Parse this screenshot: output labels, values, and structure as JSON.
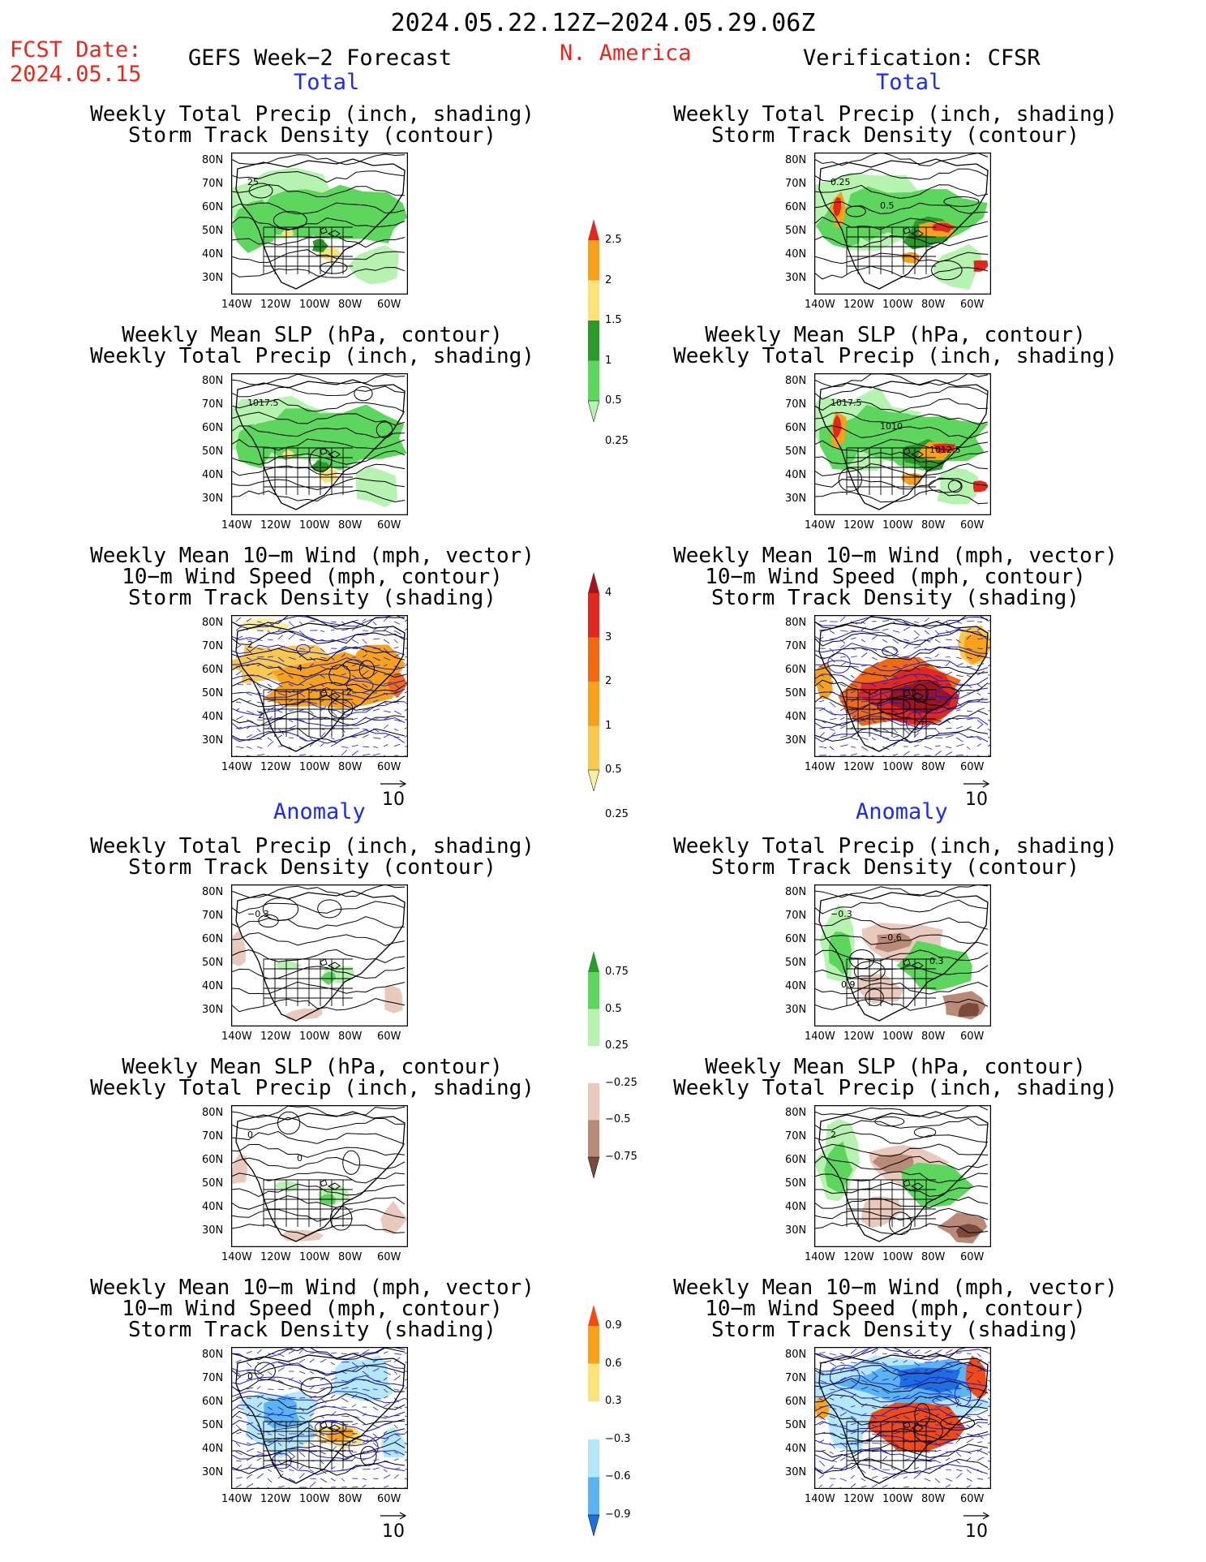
{
  "header": {
    "title": "2024.05.22.12Z−2024.05.29.06Z",
    "fcst_label": "FCST Date:",
    "fcst_date": "2024.05.15",
    "left_title": "GEFS Week−2 Forecast",
    "region": "N. America",
    "right_title": "Verification: CFSR",
    "section_total": "Total",
    "section_anomaly": "Anomaly"
  },
  "panel_titles": {
    "precip_storm": [
      "Weekly Total Precip (inch, shading)",
      "Storm Track Density (contour)"
    ],
    "slp_precip": [
      "Weekly Mean SLP (hPa, contour)",
      "Weekly Total Precip (inch, shading)"
    ],
    "wind_storm": [
      "Weekly Mean 10−m Wind (mph, vector)",
      "10−m Wind Speed (mph, contour)",
      "Storm Track Density (shading)"
    ]
  },
  "axes": {
    "lat_labels": [
      "80N",
      "70N",
      "60N",
      "50N",
      "40N",
      "30N"
    ],
    "lon_labels": [
      "140W",
      "120W",
      "100W",
      "80W",
      "60W"
    ]
  },
  "vector_ref": "10",
  "map_annotations": {
    "gefs_total_precip": [
      "25"
    ],
    "cfsr_total_precip": [
      "0.25",
      "0.5"
    ],
    "gefs_total_slp": [
      "1017.5"
    ],
    "cfsr_total_slp": [
      "1017.5",
      "1010",
      "1012.5"
    ],
    "gefs_total_wind": [
      "2",
      "4",
      "2",
      "2"
    ],
    "cfsr_total_wind": [],
    "gefs_anom_precip": [
      "−0.3"
    ],
    "cfsr_anom_precip": [
      "−0.3",
      "−0.6",
      "0.3",
      "0.9"
    ],
    "gefs_anom_slp": [
      "0",
      "0"
    ],
    "cfsr_anom_slp": [
      "2"
    ],
    "gefs_anom_wind": [
      "0"
    ],
    "cfsr_anom_wind": []
  },
  "colorbars": {
    "precip_total": {
      "labels": [
        "2.5",
        "2",
        "1.5",
        "1",
        "0.5",
        "0.25"
      ],
      "colors": [
        "#e0281e",
        "#f7a21a",
        "#fbe27a",
        "#2a9a2a",
        "#5cd65c",
        "#b6f2b0"
      ]
    },
    "storm_total": {
      "labels": [
        "4",
        "3",
        "2",
        "1",
        "0.5",
        "0.25"
      ],
      "colors": [
        "#a0141e",
        "#e0281e",
        "#f06a14",
        "#f7a21a",
        "#f8c850",
        "#fbf0a0"
      ]
    },
    "precip_anom": {
      "labels": [
        "0.75",
        "0.5",
        "0.25",
        "−0.25",
        "−0.5",
        "−0.75"
      ],
      "colors": [
        "#2a9a2a",
        "#5cd65c",
        "#b6f2b0",
        "#ffffff",
        "#e8c9bb",
        "#b88a78",
        "#7a4a3a"
      ]
    },
    "storm_anom": {
      "labels": [
        "0.9",
        "0.6",
        "0.3",
        "−0.3",
        "−0.6",
        "−0.9"
      ],
      "colors": [
        "#f24a14",
        "#f7a21a",
        "#fbe27a",
        "#ffffff",
        "#b4e8f8",
        "#5ab4f0",
        "#1e6ee0"
      ]
    }
  }
}
